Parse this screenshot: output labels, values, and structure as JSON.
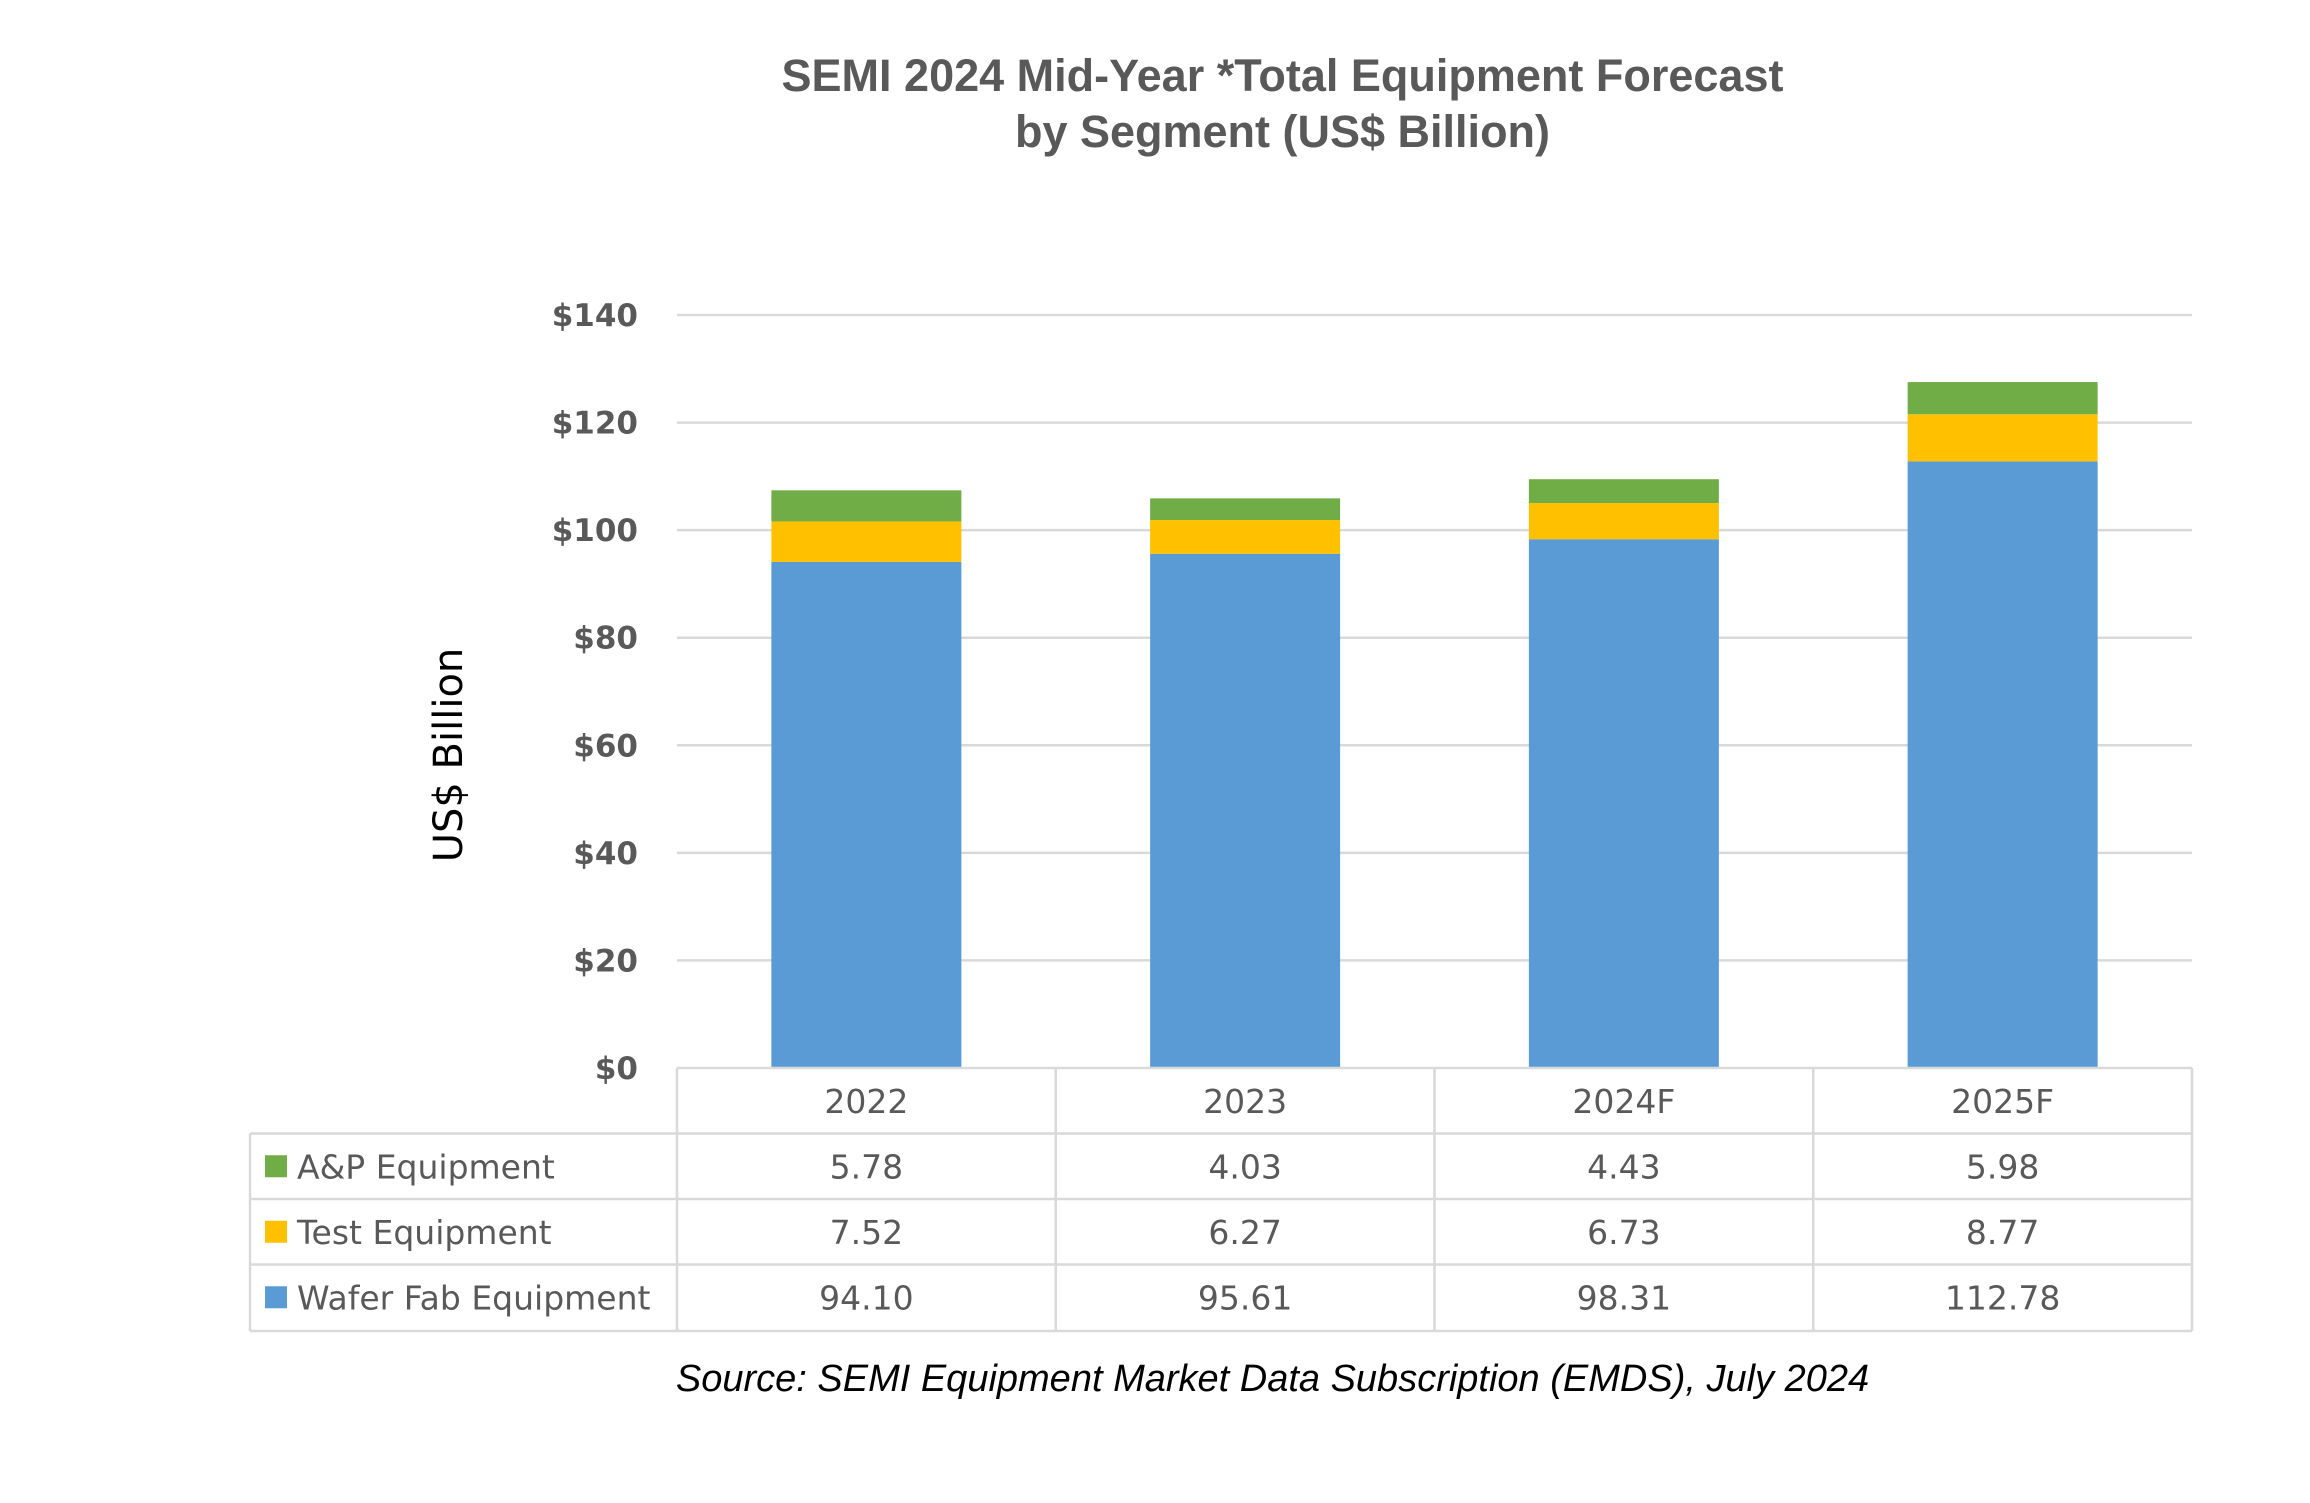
{
  "chart_data": {
    "type": "bar",
    "stacked": true,
    "title_lines": [
      "SEMI 2024 Mid-Year *Total Equipment Forecast",
      "by Segment (US$ Billion)"
    ],
    "ylabel": "US$ Billion",
    "ylim": [
      0,
      140
    ],
    "yticks": [
      "$0",
      "$20",
      "$40",
      "$60",
      "$80",
      "$100",
      "$120",
      "$140"
    ],
    "ytick_values": [
      0,
      20,
      40,
      60,
      80,
      100,
      120,
      140
    ],
    "grid": true,
    "legend": "data-table",
    "categories": [
      "2022",
      "2023",
      "2024F",
      "2025F"
    ],
    "series": [
      {
        "name": "Wafer Fab Equipment",
        "color": "#5b9bd5",
        "values": [
          94.1,
          95.61,
          98.31,
          112.78
        ],
        "labels": [
          "94.10",
          "95.61",
          "98.31",
          "112.78"
        ]
      },
      {
        "name": "Test Equipment",
        "color": "#ffc000",
        "values": [
          7.52,
          6.27,
          6.73,
          8.77
        ],
        "labels": [
          "7.52",
          "6.27",
          "6.73",
          "8.77"
        ]
      },
      {
        "name": "A&P Equipment",
        "color": "#70ad47",
        "values": [
          5.78,
          4.03,
          4.43,
          5.98
        ],
        "labels": [
          "5.78",
          "4.03",
          "4.43",
          "5.98"
        ]
      }
    ],
    "table_row_order": [
      "A&P Equipment",
      "Test Equipment",
      "Wafer Fab Equipment"
    ],
    "source": "Source: SEMI Equipment Market Data Subscription (EMDS), July 2024"
  }
}
